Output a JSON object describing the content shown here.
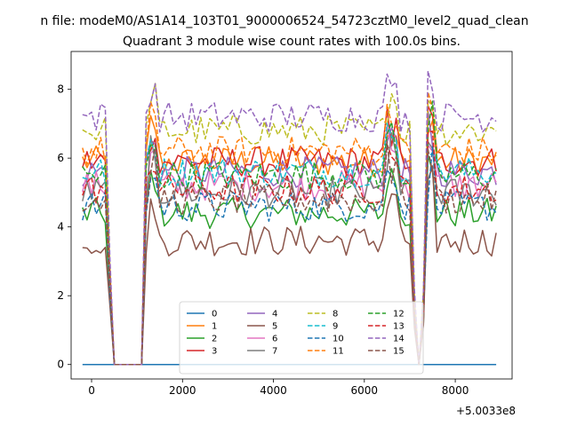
{
  "chart_data": {
    "type": "line",
    "suptitle": "n file: modeM0/AS1A14_103T01_9000006524_54723cztM0_level2_quad_clean",
    "title": "Quadrant 3 module wise count rates with 100.0s bins.",
    "xlabel": "",
    "ylabel": "",
    "x_offset_label": "+5.0033e8",
    "xlim": [
      -450,
      9250
    ],
    "ylim": [
      -0.42,
      9.1
    ],
    "xticks": [
      0,
      2000,
      4000,
      6000,
      8000
    ],
    "xtick_labels": [
      "0",
      "2000",
      "4000",
      "6000",
      "8000"
    ],
    "yticks": [
      0,
      2,
      4,
      6,
      8
    ],
    "ytick_labels": [
      "0",
      "2",
      "4",
      "6",
      "8"
    ],
    "legend_location": "lower center",
    "series": [
      {
        "name": "0",
        "color": "#1f77b4",
        "dash": "solid",
        "level": 0.0
      },
      {
        "name": "1",
        "color": "#ff7f0e",
        "dash": "solid",
        "level": 5.9
      },
      {
        "name": "2",
        "color": "#2ca02c",
        "dash": "solid",
        "level": 4.4
      },
      {
        "name": "3",
        "color": "#d62728",
        "dash": "solid",
        "level": 5.9
      },
      {
        "name": "4",
        "color": "#9467bd",
        "dash": "solid",
        "level": 5.6
      },
      {
        "name": "5",
        "color": "#8c564b",
        "dash": "solid",
        "level": 3.6
      },
      {
        "name": "6",
        "color": "#e377c2",
        "dash": "solid",
        "level": 5.2
      },
      {
        "name": "7",
        "color": "#7f7f7f",
        "dash": "solid",
        "level": 5.0
      },
      {
        "name": "8",
        "color": "#bcbd22",
        "dash": "dashed",
        "level": 6.8
      },
      {
        "name": "9",
        "color": "#17becf",
        "dash": "dashed",
        "level": 5.6
      },
      {
        "name": "10",
        "color": "#1f77b4",
        "dash": "dashed",
        "level": 4.6
      },
      {
        "name": "11",
        "color": "#ff7f0e",
        "dash": "dashed",
        "level": 6.2
      },
      {
        "name": "12",
        "color": "#2ca02c",
        "dash": "dashed",
        "level": 5.5
      },
      {
        "name": "13",
        "color": "#d62728",
        "dash": "dashed",
        "level": 5.1
      },
      {
        "name": "14",
        "color": "#9467bd",
        "dash": "dashed",
        "level": 7.2
      },
      {
        "name": "15",
        "color": "#8c564b",
        "dash": "dashed",
        "level": 4.8
      }
    ],
    "gaps": [
      {
        "from": 450,
        "to": 1150,
        "value": 0.0
      },
      {
        "from": 7150,
        "to": 7250,
        "value": 0.0
      }
    ],
    "x_start": -200,
    "x_end": 8900,
    "bin_step": 100
  }
}
